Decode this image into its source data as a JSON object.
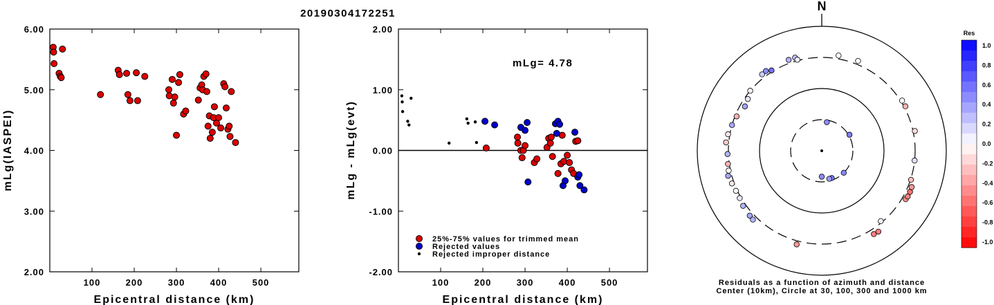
{
  "event_id": "20190304172251",
  "chart_data": [
    {
      "type": "scatter",
      "title": "",
      "xlabel": "Epicentral distance (km)",
      "ylabel": "mLg(IASPEI)",
      "xlim": [
        0,
        590
      ],
      "ylim": [
        2.0,
        6.0
      ],
      "xticks": [
        "100",
        "200",
        "300",
        "400",
        "500"
      ],
      "yticks": [
        "2.00",
        "3.00",
        "4.00",
        "5.00",
        "6.00"
      ],
      "color": "#dd0000",
      "series": [
        {
          "x": [
            8,
            9,
            10,
            22,
            25,
            27,
            30,
            120,
            162,
            165,
            182,
            185,
            190,
            205,
            208,
            225,
            282,
            283,
            290,
            293,
            296,
            300,
            305,
            308,
            317,
            322,
            352,
            356,
            360,
            362,
            365,
            370,
            372,
            375,
            378,
            380,
            385,
            388,
            390,
            395,
            400,
            405,
            412,
            415,
            418,
            422,
            425,
            427,
            430,
            440
          ],
          "y": [
            5.7,
            5.62,
            5.43,
            5.27,
            5.22,
            5.2,
            5.67,
            4.92,
            5.32,
            5.25,
            5.27,
            4.92,
            4.82,
            5.28,
            4.82,
            5.22,
            5.0,
            4.9,
            5.17,
            4.78,
            4.88,
            4.25,
            5.12,
            5.25,
            4.6,
            4.65,
            4.83,
            5.03,
            5.08,
            5.0,
            5.22,
            5.26,
            4.97,
            4.4,
            4.57,
            4.2,
            4.3,
            4.54,
            4.72,
            4.45,
            4.54,
            4.37,
            5.1,
            5.05,
            4.7,
            4.35,
            4.4,
            4.23,
            4.97,
            4.13
          ]
        }
      ]
    },
    {
      "type": "scatter",
      "title": "",
      "annotation": "mLg= 4.78",
      "xlabel": "Epicentral distance (km)",
      "ylabel": "mLg - mLg(evt)",
      "xlim": [
        0,
        590
      ],
      "ylim": [
        -2.0,
        2.0
      ],
      "xticks": [
        "100",
        "200",
        "300",
        "400",
        "500"
      ],
      "yticks": [
        "-2.00",
        "-1.00",
        "0.00",
        "1.00",
        "2.00"
      ],
      "legend_position": "bottom-left",
      "series": [
        {
          "name": "25%-75% values for trimmed mean",
          "color": "#dd0000",
          "x": [
            208,
            282,
            283,
            290,
            293,
            296,
            300,
            322,
            328,
            352,
            356,
            360,
            362,
            365,
            378,
            385,
            388,
            392,
            400,
            405,
            410,
            415,
            420,
            425
          ],
          "y": [
            0.04,
            0.22,
            0.12,
            0.0,
            -0.12,
            0.0,
            0.08,
            -0.2,
            -0.14,
            0.05,
            0.2,
            0.12,
            0.22,
            -0.1,
            -0.38,
            -0.22,
            0.25,
            -0.18,
            -0.08,
            -0.2,
            -0.32,
            -0.38,
            0.15,
            0.16
          ]
        },
        {
          "name": "Rejected values",
          "color": "#0000cc",
          "x": [
            205,
            228,
            290,
            300,
            305,
            307,
            372,
            375,
            378,
            382,
            390,
            395,
            418,
            425,
            428,
            430,
            440
          ],
          "y": [
            0.48,
            0.42,
            0.38,
            0.33,
            0.46,
            -0.52,
            0.44,
            0.28,
            0.48,
            0.43,
            -0.58,
            -0.5,
            0.3,
            -0.44,
            -0.4,
            -0.58,
            -0.65
          ]
        },
        {
          "name": "Rejected improper distance",
          "color": "#000000",
          "x": [
            8,
            9,
            10,
            22,
            25,
            30,
            120,
            162,
            165,
            182,
            185
          ],
          "y": [
            0.9,
            0.8,
            0.64,
            0.48,
            0.42,
            0.86,
            0.12,
            0.52,
            0.45,
            0.47,
            0.13
          ]
        }
      ]
    },
    {
      "type": "polar-scatter",
      "north_label": "N",
      "caption_line1": "Residuals as a function of azimuth and distance",
      "caption_line2": "Center (10km), Circle at 30, 100, 300 and 1000 km",
      "colorbar_title": "Res",
      "colorbar_ticks": [
        "1.0",
        "0.8",
        "0.6",
        "0.4",
        "0.2",
        "0.0",
        "-0.2",
        "-0.4",
        "-0.6",
        "-0.8",
        "-1.0"
      ],
      "rings_km": [
        30,
        100,
        300,
        1000
      ],
      "points_az_dist_res": [
        [
          340,
          375,
          0.3
        ],
        [
          344,
          380,
          0.25
        ],
        [
          10,
          375,
          0.0
        ],
        [
          22,
          380,
          0.0
        ],
        [
          325,
          390,
          0.45
        ],
        [
          322,
          380,
          0.2
        ],
        [
          328,
          330,
          0.55
        ],
        [
          345,
          320,
          0.05
        ],
        [
          310,
          300,
          -0.05
        ],
        [
          305,
          280,
          0.1
        ],
        [
          300,
          270,
          0.35
        ],
        [
          292,
          290,
          -0.3
        ],
        [
          286,
          300,
          0.35
        ],
        [
          280,
          340,
          -0.08
        ],
        [
          275,
          360,
          -0.2
        ],
        [
          268,
          320,
          0.3
        ],
        [
          262,
          330,
          -0.3
        ],
        [
          258,
          340,
          0.0
        ],
        [
          255,
          380,
          0.35
        ],
        [
          250,
          350,
          -0.1
        ],
        [
          245,
          330,
          0.0
        ],
        [
          240,
          330,
          0.1
        ],
        [
          235,
          360,
          0.3
        ],
        [
          228,
          380,
          0.35
        ],
        [
          225,
          390,
          0.3
        ],
        [
          195,
          380,
          -0.4
        ],
        [
          148,
          410,
          -0.5
        ],
        [
          145,
          420,
          -0.5
        ],
        [
          120,
          380,
          -0.45
        ],
        [
          118,
          390,
          -0.5
        ],
        [
          115,
          390,
          -0.55
        ],
        [
          112,
          380,
          -0.4
        ],
        [
          108,
          310,
          -0.25
        ],
        [
          96,
          300,
          0.12
        ],
        [
          78,
          340,
          -0.15
        ],
        [
          62,
          330,
          -0.3
        ],
        [
          58,
          330,
          -0.02
        ],
        [
          140,
          290,
          0.05
        ],
        [
          60,
          32,
          0.5
        ],
        [
          135,
          30,
          0.48
        ],
        [
          160,
          28,
          0.5
        ],
        [
          165,
          28,
          0.4
        ],
        [
          180,
          25,
          0.45
        ],
        [
          10,
          28,
          0.45
        ]
      ]
    }
  ]
}
